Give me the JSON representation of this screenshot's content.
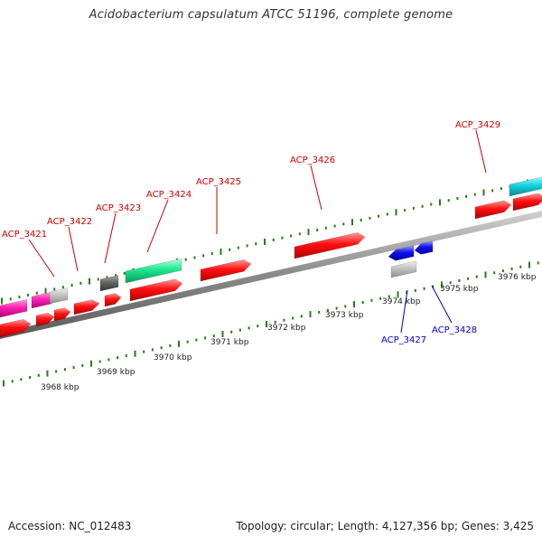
{
  "title": "Acidobacterium capsulatum ATCC 51196, complete genome",
  "footer": {
    "accession": "Accession: NC_012483",
    "topology": "Topology: circular; Length: 4,127,356 bp; Genes: 3,425"
  },
  "colors": {
    "forward_label": "#cc0000",
    "reverse_label": "#0000cc",
    "tick": "#2a7a1a",
    "axis": "#8a8a8a"
  },
  "scale": {
    "labels": [
      "3968 kbp",
      "3969 kbp",
      "3970 kbp",
      "3971 kbp",
      "3972 kbp",
      "3973 kbp",
      "3974 kbp",
      "3975 kbp",
      "3976 kbp"
    ]
  },
  "genes": [
    {
      "name": "ACP_3421",
      "strand": "forward"
    },
    {
      "name": "ACP_3422",
      "strand": "forward"
    },
    {
      "name": "ACP_3423",
      "strand": "forward"
    },
    {
      "name": "ACP_3424",
      "strand": "forward"
    },
    {
      "name": "ACP_3425",
      "strand": "forward"
    },
    {
      "name": "ACP_3426",
      "strand": "forward"
    },
    {
      "name": "ACP_3429",
      "strand": "forward"
    },
    {
      "name": "ACP_3427",
      "strand": "reverse"
    },
    {
      "name": "ACP_3428",
      "strand": "reverse"
    }
  ]
}
